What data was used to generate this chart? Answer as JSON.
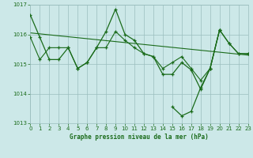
{
  "title": "Graphe pression niveau de la mer (hPa)",
  "bg_color": "#cce8e8",
  "grid_color": "#9abebe",
  "line_color": "#1a6b1a",
  "ylim": [
    1013,
    1017
  ],
  "xlim": [
    0,
    23
  ],
  "yticks": [
    1013,
    1014,
    1015,
    1016,
    1017
  ],
  "xticks": [
    0,
    1,
    2,
    3,
    4,
    5,
    6,
    7,
    8,
    9,
    10,
    11,
    12,
    13,
    14,
    15,
    16,
    17,
    18,
    19,
    20,
    21,
    22,
    23
  ],
  "line1_x": [
    0,
    1,
    2,
    3,
    4,
    5,
    6,
    7,
    8,
    9,
    10,
    11,
    12,
    13,
    14,
    15,
    16,
    17,
    18,
    19,
    20,
    21,
    22,
    23
  ],
  "line1_y": [
    1016.65,
    1015.9,
    1015.15,
    1015.15,
    1015.55,
    1014.85,
    1015.05,
    1015.55,
    1016.1,
    1016.85,
    1016.0,
    1015.8,
    1015.35,
    1015.25,
    1014.65,
    1014.65,
    1015.05,
    1014.8,
    1014.15,
    1014.85,
    1016.15,
    1015.7,
    1015.35,
    1015.35
  ],
  "line2_x": [
    0,
    1,
    2,
    3,
    4,
    5,
    6,
    7,
    8,
    9,
    10,
    11,
    12,
    13,
    14,
    15,
    16,
    17,
    18,
    19,
    20,
    21,
    22,
    23
  ],
  "line2_y": [
    1015.9,
    1015.15,
    1015.55,
    1015.55,
    1015.55,
    1014.85,
    1015.05,
    1015.55,
    1015.55,
    1016.1,
    1015.8,
    1015.55,
    1015.35,
    1015.25,
    1014.85,
    1015.05,
    1015.25,
    1014.85,
    1014.45,
    1014.85,
    1016.15,
    1015.7,
    1015.35,
    1015.35
  ],
  "line3_x": [
    15,
    16,
    17,
    18,
    19,
    20
  ],
  "line3_y": [
    1013.55,
    1013.25,
    1013.4,
    1014.2,
    1014.85,
    1016.15
  ],
  "trend_x": [
    0,
    23
  ],
  "trend_y": [
    1016.05,
    1015.3
  ]
}
